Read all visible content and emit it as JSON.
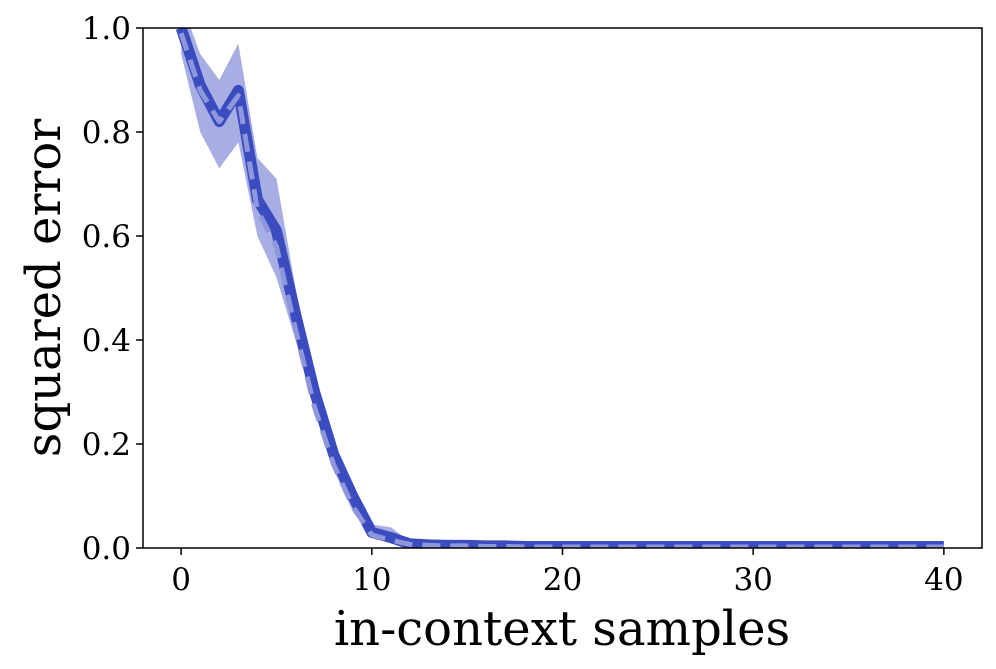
{
  "chart_data": {
    "type": "line",
    "xlabel": "in-context samples",
    "ylabel": "squared error",
    "x": [
      0,
      1,
      2,
      3,
      4,
      5,
      6,
      7,
      8,
      9,
      10,
      11,
      12,
      13,
      14,
      15,
      16,
      17,
      18,
      19,
      20,
      21,
      22,
      23,
      24,
      25,
      26,
      27,
      28,
      29,
      30,
      31,
      32,
      33,
      34,
      35,
      36,
      37,
      38,
      39,
      40
    ],
    "series": [
      {
        "color": "#3b4cc0",
        "style": "solid",
        "band_color": "#3b4cc0",
        "values": [
          1.0,
          0.89,
          0.82,
          0.88,
          0.67,
          0.61,
          0.45,
          0.3,
          0.18,
          0.1,
          0.03,
          0.02,
          0.008,
          0.006,
          0.005,
          0.005,
          0.004,
          0.004,
          0.003,
          0.003,
          0.003,
          0.003,
          0.003,
          0.003,
          0.003,
          0.003,
          0.003,
          0.003,
          0.003,
          0.003,
          0.003,
          0.003,
          0.003,
          0.003,
          0.003,
          0.003,
          0.003,
          0.003,
          0.003,
          0.003,
          0.003
        ],
        "lower": [
          0.95,
          0.8,
          0.73,
          0.78,
          0.6,
          0.52,
          0.4,
          0.27,
          0.15,
          0.07,
          0.02,
          0.01,
          0.005,
          0.004,
          0.003,
          0.003,
          0.002,
          0.002,
          0.002,
          0.002,
          0.002,
          0.002,
          0.002,
          0.002,
          0.002,
          0.002,
          0.002,
          0.002,
          0.002,
          0.002,
          0.002,
          0.002,
          0.002,
          0.002,
          0.002,
          0.002,
          0.002,
          0.002,
          0.002,
          0.002,
          0.002
        ],
        "upper": [
          1.05,
          0.95,
          0.9,
          0.97,
          0.75,
          0.71,
          0.5,
          0.33,
          0.2,
          0.12,
          0.045,
          0.04,
          0.012,
          0.009,
          0.007,
          0.006,
          0.005,
          0.005,
          0.004,
          0.004,
          0.004,
          0.004,
          0.004,
          0.004,
          0.004,
          0.004,
          0.004,
          0.004,
          0.004,
          0.004,
          0.004,
          0.004,
          0.004,
          0.004,
          0.004,
          0.004,
          0.004,
          0.004,
          0.004,
          0.004,
          0.004
        ]
      },
      {
        "color": "#8f97dc",
        "style": "dashed",
        "values": [
          0.99,
          0.88,
          0.82,
          0.87,
          0.65,
          0.58,
          0.42,
          0.27,
          0.16,
          0.08,
          0.025,
          0.015,
          0.007,
          0.005,
          0.004,
          0.004,
          0.003,
          0.003,
          0.002,
          0.002,
          0.002,
          0.002,
          0.002,
          0.002,
          0.002,
          0.002,
          0.002,
          0.002,
          0.002,
          0.002,
          0.002,
          0.002,
          0.002,
          0.002,
          0.002,
          0.002,
          0.002,
          0.002,
          0.002,
          0.002,
          0.002
        ]
      }
    ],
    "xlim": [
      -2,
      42
    ],
    "ylim": [
      0,
      1
    ],
    "xticks": [
      0,
      10,
      20,
      30,
      40
    ],
    "yticks": [
      {
        "value": 0,
        "label": "0.0"
      },
      {
        "value": 0.2,
        "label": "0.2"
      },
      {
        "value": 0.4,
        "label": "0.4"
      },
      {
        "value": 0.6,
        "label": "0.6"
      },
      {
        "value": 0.8,
        "label": "0.8"
      },
      {
        "value": 1,
        "label": "1.0"
      }
    ]
  }
}
